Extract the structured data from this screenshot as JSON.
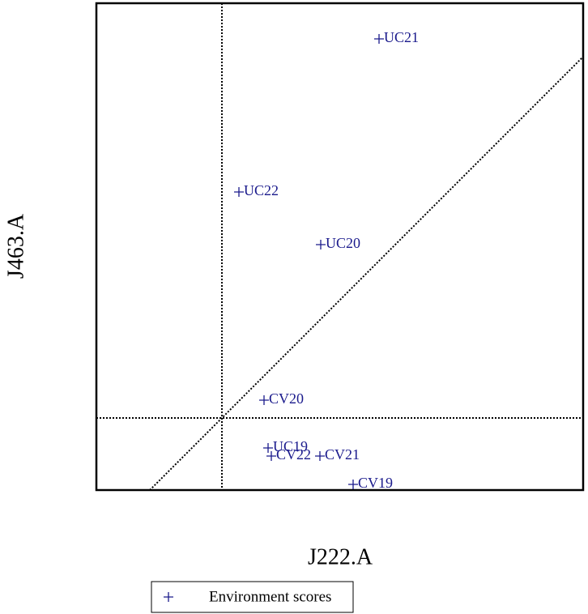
{
  "chart_data": {
    "type": "scatter",
    "xlabel": "J222.A",
    "ylabel": "J463.A",
    "xlim": [
      -1.55,
      4.46
    ],
    "ylim": [
      -0.89,
      5.12
    ],
    "reference_lines": {
      "x": 0,
      "y": 0,
      "diagonal": true
    },
    "legend": "bottom",
    "series": [
      {
        "name": "Environment scores",
        "color": "#1a1a8c",
        "labels": [
          "UC21",
          "UC22",
          "UC20",
          "CV20",
          "UC19",
          "CV22",
          "CV21",
          "CV19"
        ],
        "x": [
          1.94,
          0.21,
          1.22,
          0.52,
          0.57,
          0.61,
          1.21,
          1.62
        ],
        "values": [
          4.68,
          2.79,
          2.14,
          0.22,
          -0.37,
          -0.47,
          -0.47,
          -0.82
        ]
      }
    ]
  }
}
